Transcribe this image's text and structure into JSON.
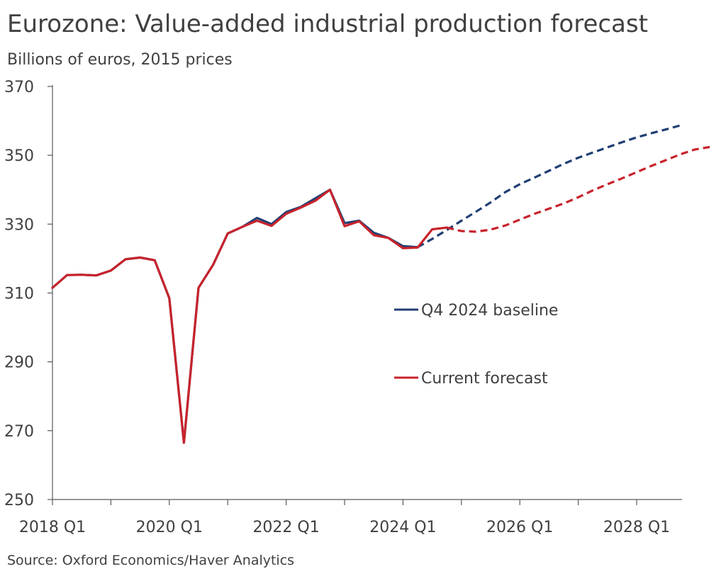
{
  "header": {
    "title": "Eurozone: Value-added industrial production forecast",
    "subtitle": "Billions of euros, 2015 prices"
  },
  "footer": {
    "source": "Source: Oxford Economics/Haver Analytics"
  },
  "colors": {
    "baseline": "#1f3f73",
    "current": "#c8232c",
    "axis": "#595959",
    "text": "#404040"
  },
  "chart_data": {
    "type": "line",
    "title": "Eurozone: Value-added industrial production forecast",
    "ylabel": "Billions of euros, 2015 prices",
    "xlabel": "",
    "ylim": [
      250,
      370
    ],
    "yticks": [
      250,
      270,
      290,
      310,
      330,
      350,
      370
    ],
    "x_start": "2018 Q1",
    "x_tick_labels": [
      "2018 Q1",
      "2020 Q1",
      "2022 Q1",
      "2024 Q1",
      "2026 Q1",
      "2028 Q1"
    ],
    "x_tick_indices": [
      0,
      8,
      16,
      24,
      32,
      40
    ],
    "grid": false,
    "legend": "center-right",
    "series": [
      {
        "name": "Q4 2024 baseline",
        "color": "#1f3f73",
        "actual_end_index": 25,
        "values": [
          311.5,
          315.2,
          315.3,
          315.1,
          316.5,
          319.8,
          320.3,
          319.5,
          308.5,
          266.5,
          311.5,
          318.2,
          327.3,
          329.2,
          331.8,
          330.0,
          333.5,
          335.0,
          337.5,
          340.0,
          330.3,
          331.0,
          327.5,
          326.0,
          323.6,
          323.3,
          325.7,
          328.3,
          331.0,
          333.6,
          336.3,
          339.3,
          341.6,
          343.5,
          345.5,
          347.5,
          349.3,
          350.8,
          352.3,
          353.8,
          355.2,
          356.4,
          357.5,
          358.7
        ]
      },
      {
        "name": "Current forecast",
        "color": "#c8232c",
        "actual_end_index": 27,
        "values": [
          311.5,
          315.2,
          315.3,
          315.1,
          316.5,
          319.8,
          320.3,
          319.5,
          308.5,
          266.5,
          311.5,
          318.2,
          327.3,
          329.2,
          331.0,
          329.5,
          333.0,
          334.8,
          336.8,
          340.0,
          329.4,
          330.8,
          326.8,
          326.0,
          323.0,
          323.2,
          328.5,
          329.0,
          328.0,
          327.8,
          328.4,
          329.6,
          331.3,
          333.0,
          334.5,
          336.0,
          337.8,
          339.8,
          341.6,
          343.3,
          345.1,
          346.9,
          348.6,
          350.3,
          351.7,
          352.4
        ]
      }
    ]
  }
}
